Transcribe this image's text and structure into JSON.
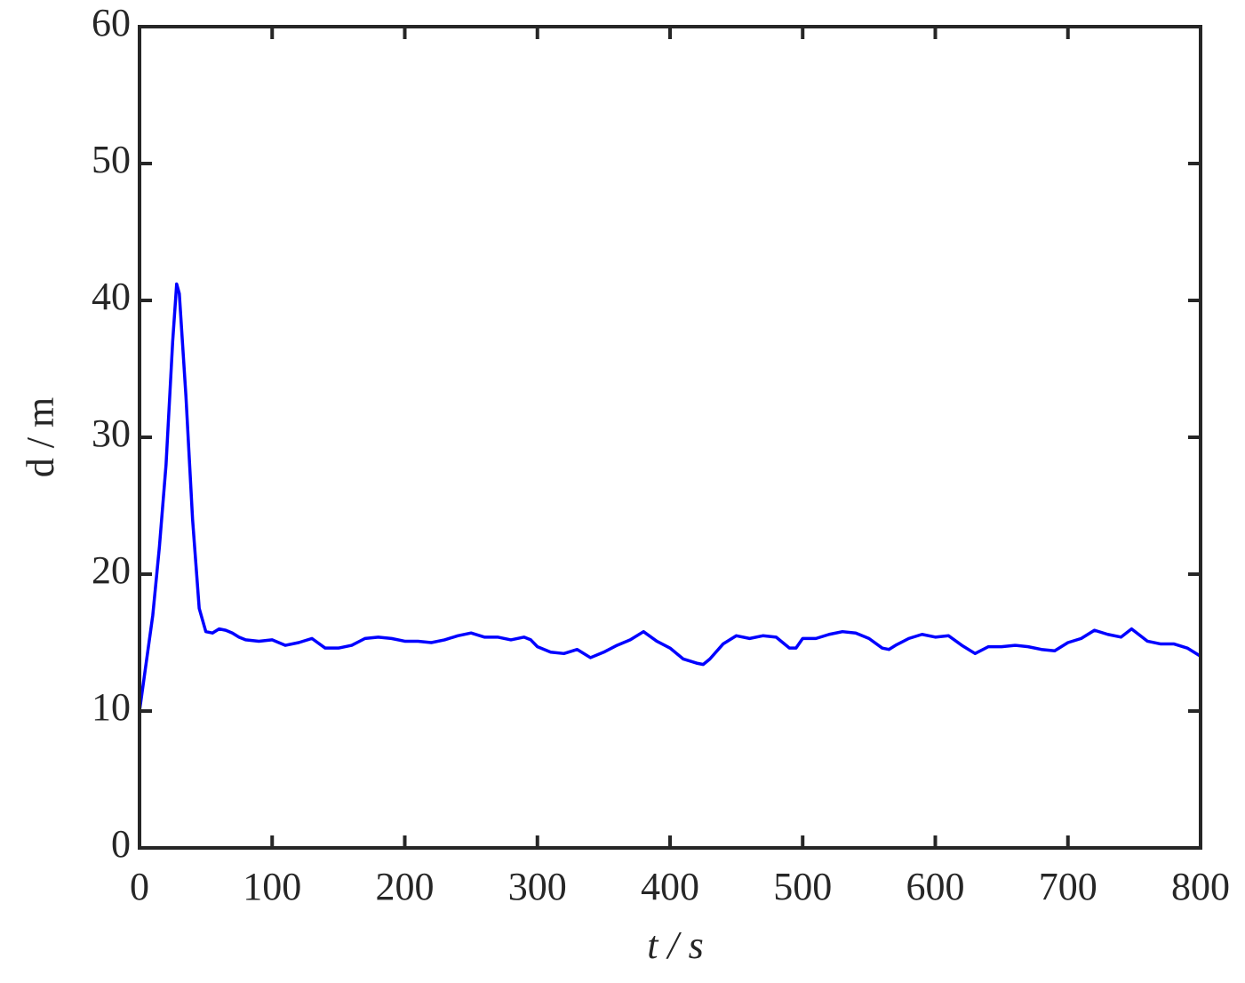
{
  "chart_data": {
    "type": "line",
    "xlabel": "t / s",
    "ylabel": "d / m",
    "xlim": [
      0,
      800
    ],
    "ylim": [
      0,
      60
    ],
    "xticks": [
      0,
      100,
      200,
      300,
      400,
      500,
      600,
      700,
      800
    ],
    "yticks": [
      0,
      10,
      20,
      30,
      40,
      50,
      60
    ],
    "x": [
      0,
      5,
      10,
      15,
      20,
      25,
      28,
      30,
      35,
      40,
      45,
      50,
      55,
      60,
      65,
      70,
      75,
      80,
      90,
      100,
      110,
      120,
      130,
      140,
      150,
      160,
      170,
      180,
      190,
      200,
      210,
      220,
      230,
      240,
      250,
      260,
      270,
      280,
      290,
      295,
      300,
      310,
      320,
      330,
      340,
      350,
      360,
      370,
      380,
      390,
      400,
      410,
      420,
      425,
      430,
      440,
      450,
      460,
      470,
      480,
      490,
      495,
      500,
      510,
      520,
      530,
      540,
      550,
      560,
      565,
      570,
      580,
      590,
      600,
      610,
      620,
      630,
      640,
      650,
      660,
      670,
      680,
      690,
      700,
      710,
      720,
      730,
      740,
      748,
      760,
      770,
      780,
      790,
      800
    ],
    "series": [
      {
        "name": "d",
        "color": "#0000ff",
        "values": [
          10,
          13.5,
          17,
          22,
          28,
          37,
          41.2,
          40.5,
          33,
          24,
          17.5,
          15.8,
          15.7,
          16.0,
          15.9,
          15.7,
          15.4,
          15.2,
          15.1,
          15.2,
          14.8,
          15.0,
          15.3,
          14.6,
          14.6,
          14.8,
          15.3,
          15.4,
          15.3,
          15.1,
          15.1,
          15.0,
          15.2,
          15.5,
          15.7,
          15.4,
          15.4,
          15.2,
          15.4,
          15.2,
          14.7,
          14.3,
          14.2,
          14.5,
          13.9,
          14.3,
          14.8,
          15.2,
          15.8,
          15.1,
          14.6,
          13.8,
          13.5,
          13.4,
          13.8,
          14.9,
          15.5,
          15.3,
          15.5,
          15.4,
          14.6,
          14.6,
          15.3,
          15.3,
          15.6,
          15.8,
          15.7,
          15.3,
          14.6,
          14.5,
          14.8,
          15.3,
          15.6,
          15.4,
          15.5,
          14.8,
          14.2,
          14.7,
          14.7,
          14.8,
          14.7,
          14.5,
          14.4,
          15.0,
          15.3,
          15.9,
          15.6,
          15.4,
          16.0,
          15.1,
          14.9,
          14.9,
          14.6,
          14.0
        ]
      }
    ]
  }
}
